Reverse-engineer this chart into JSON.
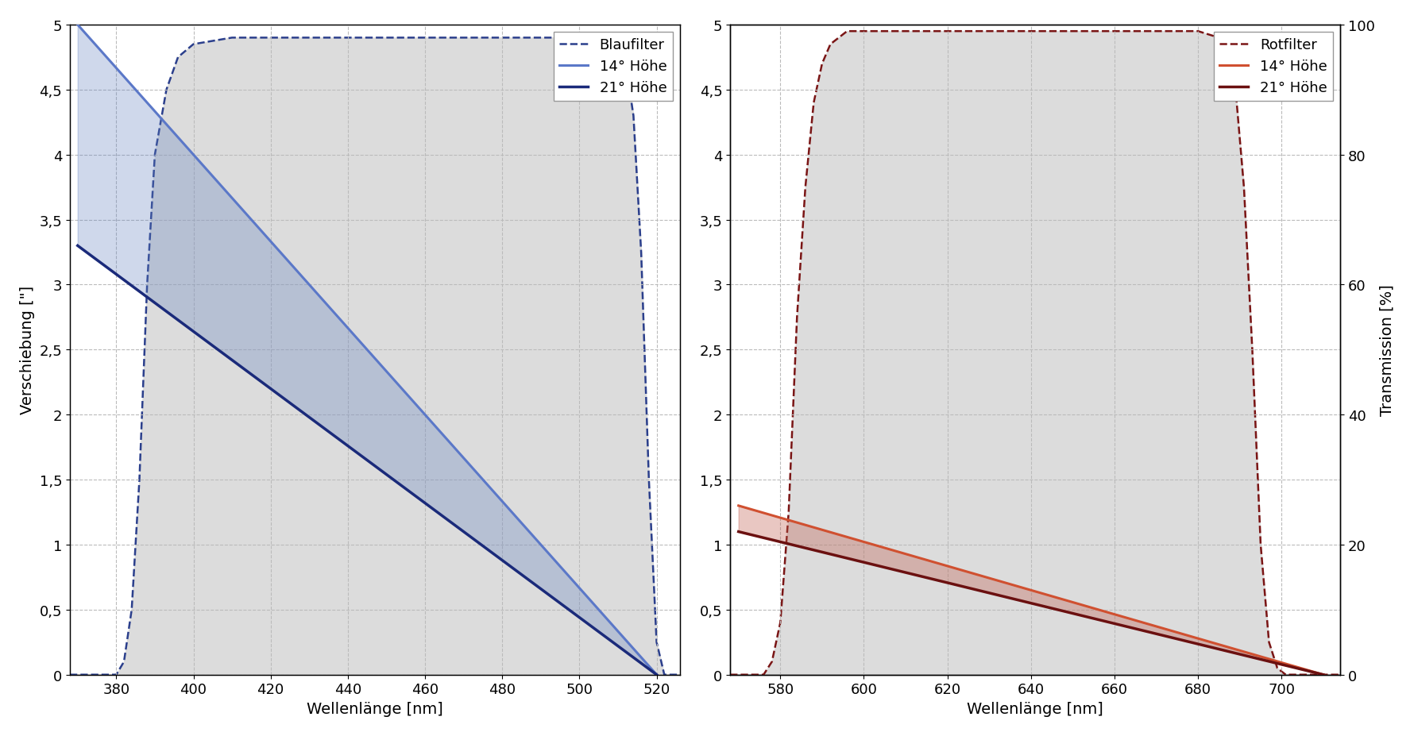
{
  "left": {
    "xlim": [
      368,
      526
    ],
    "ylim": [
      0,
      5.0
    ],
    "ylim_trans": [
      0,
      100
    ],
    "xticks": [
      380,
      400,
      420,
      440,
      460,
      480,
      500,
      520
    ],
    "yticks": [
      0,
      0.5,
      1.0,
      1.5,
      2.0,
      2.5,
      3.0,
      3.5,
      4.0,
      4.5,
      5.0
    ],
    "xlabel": "Wellenlänge [nm]",
    "ylabel": "Verschiebung [\"]",
    "filter_color": "#2B3F8C",
    "line14_color": "#5B78C8",
    "line21_color": "#1A2A7A",
    "legend_entries": [
      "Blaufilter",
      "14° Höhe",
      "21° Höhe"
    ],
    "filter_x": [
      368,
      370,
      372,
      374,
      376,
      378,
      380,
      382,
      384,
      386,
      388,
      390,
      393,
      396,
      400,
      410,
      420,
      430,
      440,
      450,
      460,
      470,
      480,
      490,
      500,
      505,
      508,
      510,
      512,
      514,
      516,
      518,
      520,
      522,
      524,
      526
    ],
    "filter_y": [
      0,
      0,
      0,
      0,
      0,
      0,
      0,
      2,
      10,
      30,
      60,
      80,
      90,
      95,
      97,
      98,
      98,
      98,
      98,
      98,
      98,
      98,
      98,
      98,
      98,
      98,
      98,
      97,
      94,
      86,
      65,
      30,
      5,
      0,
      0,
      0
    ],
    "line14_x": [
      370,
      520
    ],
    "line14_y": [
      5.0,
      0.0
    ],
    "line21_x": [
      370,
      520
    ],
    "line21_y": [
      3.3,
      0.0
    ],
    "bg_color": "#DCDCDC",
    "fill_alpha": 0.3,
    "fill_color": "#6080C0"
  },
  "right": {
    "xlim": [
      568,
      714
    ],
    "ylim": [
      0,
      5.0
    ],
    "ylim_trans": [
      0,
      100
    ],
    "xticks": [
      580,
      600,
      620,
      640,
      660,
      680,
      700
    ],
    "yticks_left": [
      0,
      0.5,
      1.0,
      1.5,
      2.0,
      2.5,
      3.0,
      3.5,
      4.0,
      4.5,
      5.0
    ],
    "yticks_right": [
      0,
      20,
      40,
      60,
      80,
      100
    ],
    "xlabel": "Wellenlänge [nm]",
    "ylabel_right": "Transmission [%]",
    "filter_color": "#7A1515",
    "line14_color": "#D05030",
    "line21_color": "#6B1010",
    "legend_entries": [
      "Rotfilter",
      "14° Höhe",
      "21° Höhe"
    ],
    "filter_x": [
      568,
      570,
      572,
      574,
      576,
      578,
      580,
      582,
      584,
      586,
      588,
      590,
      592,
      594,
      596,
      598,
      600,
      620,
      640,
      660,
      680,
      685,
      687,
      689,
      691,
      693,
      695,
      697,
      699,
      701,
      703,
      706,
      710,
      714
    ],
    "filter_y": [
      0,
      0,
      0,
      0,
      0,
      2,
      8,
      25,
      55,
      75,
      88,
      94,
      97,
      98,
      99,
      99,
      99,
      99,
      99,
      99,
      99,
      98,
      96,
      90,
      75,
      50,
      20,
      5,
      1,
      0,
      0,
      0,
      0,
      0
    ],
    "line14_x": [
      570,
      710
    ],
    "line14_y": [
      1.3,
      0.0
    ],
    "line21_x": [
      570,
      710
    ],
    "line21_y": [
      1.1,
      0.0
    ],
    "bg_color": "#DCDCDC",
    "fill_alpha": 0.35,
    "fill_color": "#C06050"
  },
  "fig_bg": "#FFFFFF",
  "tick_font_size": 13,
  "label_font_size": 14,
  "legend_font_size": 13,
  "grid_color": "#BBBBBB",
  "grid_linestyle": "--",
  "grid_linewidth": 0.8
}
